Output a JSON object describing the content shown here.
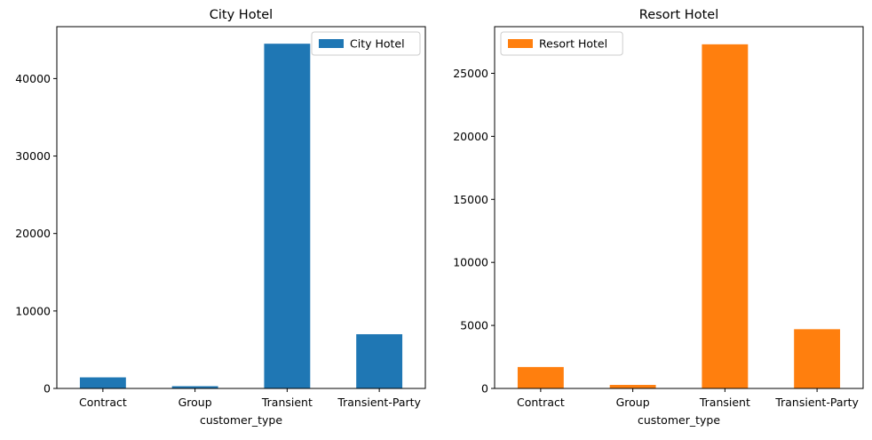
{
  "chart_data": [
    {
      "type": "bar",
      "title": "City Hotel",
      "xlabel": "customer_type",
      "ylabel": "",
      "categories": [
        "Contract",
        "Group",
        "Transient",
        "Transient-Party"
      ],
      "series": [
        {
          "name": "City Hotel",
          "values": [
            1430,
            290,
            44500,
            7000
          ],
          "color": "#1f77b4"
        }
      ],
      "ylim": [
        0,
        46700
      ],
      "yticks": [
        0,
        10000,
        20000,
        30000,
        40000
      ],
      "legend": "upper right",
      "grid": false
    },
    {
      "type": "bar",
      "title": "Resort Hotel",
      "xlabel": "customer_type",
      "ylabel": "",
      "categories": [
        "Contract",
        "Group",
        "Transient",
        "Transient-Party"
      ],
      "series": [
        {
          "name": "Resort Hotel",
          "values": [
            1700,
            280,
            27300,
            4700
          ],
          "color": "#ff7f0e"
        }
      ],
      "ylim": [
        0,
        28700
      ],
      "yticks": [
        0,
        5000,
        10000,
        15000,
        20000,
        25000
      ],
      "legend": "upper left",
      "grid": false
    }
  ]
}
